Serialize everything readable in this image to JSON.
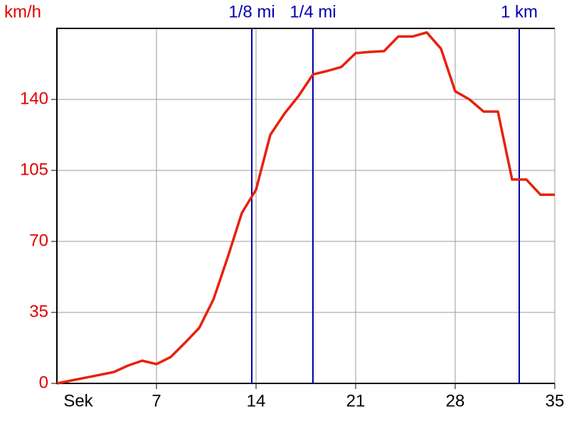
{
  "chart_data": {
    "type": "line",
    "y_label": "km/h",
    "x_label": "Sek",
    "x": [
      0,
      4,
      5,
      6,
      7,
      8,
      9,
      10,
      11,
      12,
      13,
      14,
      15,
      16,
      17,
      18,
      19,
      20,
      21,
      22,
      23,
      24,
      25,
      26,
      27,
      28,
      29,
      30,
      31,
      32,
      33,
      34,
      35
    ],
    "values": [
      0,
      5.6,
      8.8,
      11.2,
      9.5,
      13,
      20,
      27.3,
      41.3,
      62,
      84,
      95.5,
      122.5,
      133,
      141.8,
      152.3,
      154,
      156,
      162.8,
      163.4,
      163.8,
      171,
      171,
      173,
      165,
      144,
      140,
      134,
      134,
      100.5,
      100.5,
      93,
      93
    ],
    "color": "#e8200c",
    "xlim": [
      0,
      35
    ],
    "xticks": [
      7,
      14,
      21,
      28,
      35
    ],
    "ylim": [
      0,
      175
    ],
    "yticks": [
      0,
      35,
      70,
      105,
      140
    ],
    "grid": true,
    "markers": [
      {
        "label": "1/8 mi",
        "x": 13.7
      },
      {
        "label": "1/4 mi",
        "x": 18
      },
      {
        "label": "1 km",
        "x": 32.5
      }
    ],
    "marker_color": "#0000b0",
    "ytick_color": "#e00000"
  }
}
